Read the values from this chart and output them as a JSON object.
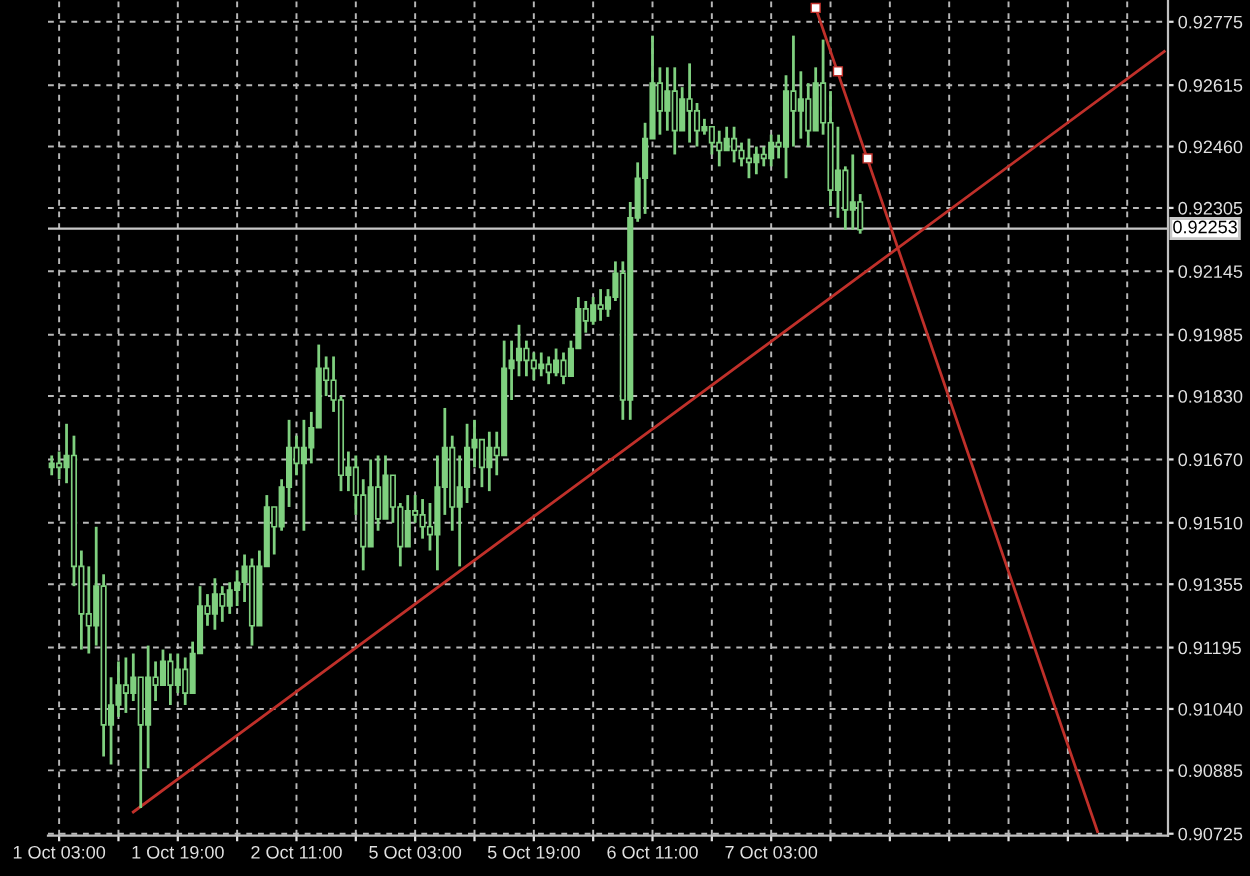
{
  "chart_data": {
    "type": "candlestick",
    "categories": [
      null,
      "1 Oct 03:00",
      null,
      null,
      null,
      null,
      null,
      null,
      null,
      null,
      null,
      null,
      null,
      null,
      null,
      null,
      null,
      "1 Oct 19:00",
      null,
      null,
      null,
      null,
      null,
      null,
      null,
      null,
      null,
      null,
      null,
      null,
      null,
      null,
      null,
      "2 Oct 11:00",
      null,
      null,
      null,
      null,
      null,
      null,
      null,
      null,
      null,
      null,
      null,
      null,
      null,
      null,
      null,
      "5 Oct 03:00",
      null,
      null,
      null,
      null,
      null,
      null,
      null,
      null,
      null,
      null,
      null,
      null,
      null,
      null,
      null,
      "5 Oct 19:00",
      null,
      null,
      null,
      null,
      null,
      null,
      null,
      null,
      null,
      null,
      null,
      null,
      null,
      null,
      null,
      "6 Oct 11:00",
      null,
      null,
      null,
      null,
      null,
      null,
      null,
      null,
      null,
      null,
      null,
      null,
      null,
      null,
      null,
      "7 Oct 03:00",
      null,
      null,
      null,
      null,
      null,
      null,
      null,
      null,
      null,
      null,
      null,
      null,
      null,
      null,
      null,
      null,
      null,
      null,
      null,
      null,
      null,
      null,
      null,
      null,
      null,
      null,
      null,
      null,
      null,
      null,
      null,
      null,
      null,
      null,
      null,
      null,
      null,
      null,
      null,
      null,
      null,
      null,
      null,
      null,
      null,
      null,
      null,
      null,
      null,
      null,
      null,
      null,
      null
    ],
    "ohlc": [
      [
        0.9165,
        0.9168,
        0.9163,
        0.9166
      ],
      [
        0.9166,
        0.9169,
        0.9162,
        0.9165
      ],
      [
        0.9165,
        0.9176,
        0.9161,
        0.9168
      ],
      [
        0.9168,
        0.9173,
        0.9135,
        0.914
      ],
      [
        0.914,
        0.9144,
        0.9119,
        0.9128
      ],
      [
        0.9128,
        0.914,
        0.9118,
        0.9125
      ],
      [
        0.9125,
        0.915,
        0.912,
        0.9135
      ],
      [
        0.9135,
        0.9138,
        0.9092,
        0.91
      ],
      [
        0.91,
        0.9112,
        0.909,
        0.9105
      ],
      [
        0.9105,
        0.9116,
        0.9102,
        0.911
      ],
      [
        0.911,
        0.9117,
        0.9103,
        0.9108
      ],
      [
        0.9108,
        0.9118,
        0.9106,
        0.9112
      ],
      [
        0.9112,
        0.9112,
        0.9079,
        0.91
      ],
      [
        0.91,
        0.912,
        0.9089,
        0.9112
      ],
      [
        0.9112,
        0.9116,
        0.9106,
        0.911
      ],
      [
        0.911,
        0.9119,
        0.911,
        0.9116
      ],
      [
        0.9116,
        0.9118,
        0.9105,
        0.911
      ],
      [
        0.911,
        0.9118,
        0.9108,
        0.9114
      ],
      [
        0.9114,
        0.9117,
        0.9105,
        0.9108
      ],
      [
        0.9108,
        0.9121,
        0.9108,
        0.9118
      ],
      [
        0.9118,
        0.9135,
        0.9118,
        0.913
      ],
      [
        0.913,
        0.9133,
        0.9125,
        0.9128
      ],
      [
        0.9128,
        0.9137,
        0.9124,
        0.9133
      ],
      [
        0.9133,
        0.9135,
        0.9126,
        0.913
      ],
      [
        0.913,
        0.9136,
        0.9128,
        0.9134
      ],
      [
        0.9134,
        0.9139,
        0.913,
        0.9136
      ],
      [
        0.9136,
        0.9143,
        0.9131,
        0.914
      ],
      [
        0.914,
        0.9142,
        0.912,
        0.9125
      ],
      [
        0.9125,
        0.9144,
        0.9125,
        0.914
      ],
      [
        0.914,
        0.9158,
        0.914,
        0.9155
      ],
      [
        0.9155,
        0.9155,
        0.9143,
        0.915
      ],
      [
        0.915,
        0.9162,
        0.9149,
        0.916
      ],
      [
        0.916,
        0.9177,
        0.9155,
        0.917
      ],
      [
        0.917,
        0.9173,
        0.9163,
        0.9166
      ],
      [
        0.9166,
        0.9177,
        0.9149,
        0.917
      ],
      [
        0.917,
        0.9179,
        0.9166,
        0.9175
      ],
      [
        0.9175,
        0.9196,
        0.9175,
        0.919
      ],
      [
        0.919,
        0.9193,
        0.9183,
        0.9187
      ],
      [
        0.9187,
        0.9193,
        0.9179,
        0.9182
      ],
      [
        0.9182,
        0.9183,
        0.9159,
        0.9163
      ],
      [
        0.9163,
        0.9169,
        0.9159,
        0.9165
      ],
      [
        0.9165,
        0.9168,
        0.9153,
        0.9158
      ],
      [
        0.9158,
        0.9162,
        0.9139,
        0.9145
      ],
      [
        0.9145,
        0.9167,
        0.9145,
        0.916
      ],
      [
        0.916,
        0.9168,
        0.9149,
        0.9152
      ],
      [
        0.9152,
        0.9168,
        0.9152,
        0.9163
      ],
      [
        0.9163,
        0.9163,
        0.9151,
        0.9155
      ],
      [
        0.9155,
        0.9156,
        0.914,
        0.9145
      ],
      [
        0.9145,
        0.9158,
        0.9145,
        0.9154
      ],
      [
        0.9154,
        0.9158,
        0.9151,
        0.9153
      ],
      [
        0.9153,
        0.9157,
        0.9147,
        0.915
      ],
      [
        0.915,
        0.9156,
        0.9144,
        0.9148
      ],
      [
        0.9148,
        0.9168,
        0.9139,
        0.916
      ],
      [
        0.916,
        0.918,
        0.9153,
        0.917
      ],
      [
        0.917,
        0.9173,
        0.9149,
        0.9155
      ],
      [
        0.9155,
        0.9168,
        0.914,
        0.916
      ],
      [
        0.916,
        0.9176,
        0.9156,
        0.917
      ],
      [
        0.917,
        0.9177,
        0.9165,
        0.9172
      ],
      [
        0.9172,
        0.9172,
        0.916,
        0.9165
      ],
      [
        0.9165,
        0.9174,
        0.9159,
        0.917
      ],
      [
        0.917,
        0.9174,
        0.9163,
        0.9168
      ],
      [
        0.9168,
        0.9197,
        0.9168,
        0.919
      ],
      [
        0.919,
        0.9197,
        0.9182,
        0.9192
      ],
      [
        0.9192,
        0.9201,
        0.9188,
        0.9195
      ],
      [
        0.9195,
        0.9197,
        0.9188,
        0.9192
      ],
      [
        0.9192,
        0.9194,
        0.9187,
        0.919
      ],
      [
        0.919,
        0.9194,
        0.9188,
        0.9191
      ],
      [
        0.9191,
        0.9193,
        0.9186,
        0.9189
      ],
      [
        0.9189,
        0.9195,
        0.9188,
        0.9192
      ],
      [
        0.9192,
        0.9194,
        0.9186,
        0.9188
      ],
      [
        0.9188,
        0.9197,
        0.9188,
        0.9195
      ],
      [
        0.9195,
        0.9208,
        0.9195,
        0.9205
      ],
      [
        0.9205,
        0.9207,
        0.9199,
        0.9202
      ],
      [
        0.9202,
        0.9208,
        0.9201,
        0.9206
      ],
      [
        0.9206,
        0.921,
        0.9202,
        0.9205
      ],
      [
        0.9205,
        0.921,
        0.9203,
        0.9208
      ],
      [
        0.9208,
        0.9217,
        0.9207,
        0.9214
      ],
      [
        0.9214,
        0.9217,
        0.9177,
        0.9182
      ],
      [
        0.9182,
        0.9232,
        0.9177,
        0.9228
      ],
      [
        0.9228,
        0.9242,
        0.9227,
        0.9238
      ],
      [
        0.9238,
        0.9252,
        0.9229,
        0.9248
      ],
      [
        0.9248,
        0.9274,
        0.9248,
        0.9262
      ],
      [
        0.9262,
        0.9266,
        0.9249,
        0.9255
      ],
      [
        0.9255,
        0.9266,
        0.925,
        0.926
      ],
      [
        0.926,
        0.9266,
        0.9244,
        0.925
      ],
      [
        0.925,
        0.9261,
        0.925,
        0.9258
      ],
      [
        0.9258,
        0.9267,
        0.9247,
        0.9255
      ],
      [
        0.9255,
        0.9257,
        0.9246,
        0.925
      ],
      [
        0.925,
        0.9253,
        0.9249,
        0.9251
      ],
      [
        0.9251,
        0.9251,
        0.9244,
        0.9247
      ],
      [
        0.9247,
        0.925,
        0.9241,
        0.9245
      ],
      [
        0.9245,
        0.9251,
        0.9245,
        0.9248
      ],
      [
        0.9248,
        0.9251,
        0.9242,
        0.9245
      ],
      [
        0.9245,
        0.9247,
        0.9241,
        0.9243
      ],
      [
        0.9243,
        0.9248,
        0.9238,
        0.9242
      ],
      [
        0.9242,
        0.9246,
        0.9239,
        0.9244
      ],
      [
        0.9244,
        0.9246,
        0.9241,
        0.9243
      ],
      [
        0.9243,
        0.9249,
        0.9241,
        0.9247
      ],
      [
        0.9247,
        0.9249,
        0.9243,
        0.9246
      ],
      [
        0.9246,
        0.9264,
        0.9238,
        0.926
      ],
      [
        0.926,
        0.9274,
        0.9246,
        0.9255
      ],
      [
        0.9255,
        0.9265,
        0.9248,
        0.9258
      ],
      [
        0.9258,
        0.9262,
        0.9246,
        0.925
      ],
      [
        0.925,
        0.9266,
        0.925,
        0.9262
      ],
      [
        0.9262,
        0.9273,
        0.9249,
        0.9252
      ],
      [
        0.9252,
        0.926,
        0.9231,
        0.9235
      ],
      [
        0.9235,
        0.9251,
        0.9228,
        0.924
      ],
      [
        0.924,
        0.9241,
        0.9225,
        0.923
      ],
      [
        0.923,
        0.9244,
        0.9225,
        0.9232
      ],
      [
        0.9232,
        0.9234,
        0.9224,
        0.9225
      ],
      null,
      null,
      null,
      null,
      null,
      null,
      null,
      null,
      null,
      null,
      null,
      null,
      null,
      null,
      null,
      null,
      null,
      null,
      null,
      null,
      null,
      null,
      null,
      null,
      null,
      null,
      null,
      null,
      null,
      null,
      null,
      null,
      null,
      null,
      null,
      null,
      null,
      null,
      null,
      null,
      null
    ],
    "color": "#7fd07f",
    "series": [
      {
        "type": "line",
        "color": "#c0302a",
        "values": [
          null,
          null,
          null,
          null,
          null,
          null,
          null,
          null,
          null,
          null,
          null,
          0.9078,
          null,
          null,
          null,
          null,
          null,
          null,
          null,
          null,
          null,
          null,
          null,
          null,
          null,
          null,
          null,
          null,
          null,
          null,
          null,
          null,
          null,
          null,
          null,
          null,
          null,
          null,
          null,
          null,
          null,
          null,
          null,
          null,
          null,
          null,
          null,
          null,
          null,
          null,
          null,
          null,
          null,
          null,
          null,
          null,
          null,
          null,
          null,
          null,
          null,
          null,
          null,
          null,
          null,
          null,
          null,
          null,
          null,
          null,
          null,
          null,
          null,
          null,
          null,
          null,
          null,
          null,
          null,
          null,
          null,
          null,
          null,
          null,
          null,
          null,
          null,
          null,
          null,
          null,
          null,
          null,
          null,
          null,
          null,
          null,
          null,
          null,
          null,
          null,
          null,
          null,
          null,
          null,
          null,
          null,
          null,
          null,
          null,
          null,
          null,
          null,
          null,
          null,
          null,
          null,
          null,
          null,
          null,
          null,
          null,
          null,
          null,
          null,
          null,
          null,
          null,
          null,
          null,
          null,
          null,
          null,
          null,
          null,
          null,
          null,
          null,
          null,
          null,
          null,
          null,
          null,
          null,
          null,
          null,
          null,
          null,
          null,
          null,
          null,
          0.927
        ]
      },
      {
        "type": "line",
        "color": "#c0302a",
        "values": [
          null,
          null,
          null,
          null,
          null,
          null,
          null,
          null,
          null,
          null,
          null,
          null,
          null,
          null,
          null,
          null,
          null,
          null,
          null,
          null,
          null,
          null,
          null,
          null,
          null,
          null,
          null,
          null,
          null,
          null,
          null,
          null,
          null,
          null,
          null,
          null,
          null,
          null,
          null,
          null,
          null,
          null,
          null,
          null,
          null,
          null,
          null,
          null,
          null,
          null,
          null,
          null,
          null,
          null,
          null,
          null,
          null,
          null,
          null,
          null,
          null,
          null,
          null,
          null,
          null,
          null,
          null,
          null,
          null,
          null,
          null,
          null,
          null,
          null,
          null,
          null,
          null,
          null,
          null,
          null,
          null,
          null,
          null,
          null,
          null,
          null,
          null,
          null,
          null,
          null,
          null,
          null,
          null,
          null,
          null,
          null,
          null,
          null,
          null,
          null,
          null,
          null,
          null,
          0.9281,
          null,
          null,
          null,
          null,
          null,
          null,
          null,
          null,
          null,
          null,
          null,
          null,
          null,
          null,
          null,
          null,
          null,
          null,
          null,
          null,
          null,
          null,
          null,
          null,
          null,
          null,
          null,
          null,
          null,
          null,
          null,
          null,
          null,
          null,
          null,
          null,
          null,
          0.9073,
          null,
          null,
          null,
          null,
          null,
          null,
          null,
          null,
          null
        ]
      },
      {
        "type": "scatter",
        "color": "#ffffff",
        "marker": "square",
        "values": [
          null,
          null,
          null,
          null,
          null,
          null,
          null,
          null,
          null,
          null,
          null,
          null,
          null,
          null,
          null,
          null,
          null,
          null,
          null,
          null,
          null,
          null,
          null,
          null,
          null,
          null,
          null,
          null,
          null,
          null,
          null,
          null,
          null,
          null,
          null,
          null,
          null,
          null,
          null,
          null,
          null,
          null,
          null,
          null,
          null,
          null,
          null,
          null,
          null,
          null,
          null,
          null,
          null,
          null,
          null,
          null,
          null,
          null,
          null,
          null,
          null,
          null,
          null,
          null,
          null,
          null,
          null,
          null,
          null,
          null,
          null,
          null,
          null,
          null,
          null,
          null,
          null,
          null,
          null,
          null,
          null,
          null,
          null,
          null,
          null,
          null,
          null,
          null,
          null,
          null,
          null,
          null,
          null,
          null,
          null,
          null,
          null,
          null,
          null,
          null,
          null,
          null,
          null,
          0.9281,
          null,
          null,
          0.9265,
          null,
          null,
          null,
          0.9243,
          null,
          null,
          null,
          null,
          null,
          null,
          null,
          null,
          null,
          null,
          null,
          null,
          null,
          null,
          null,
          null,
          null,
          null,
          null,
          null,
          null,
          null,
          null,
          null,
          null,
          null,
          null,
          null,
          null,
          null,
          null,
          null,
          null,
          null,
          null,
          null,
          null,
          null,
          null,
          null
        ]
      }
    ],
    "ylim": [
      0.9072,
      0.9283
    ],
    "yticks": [
      0.92775,
      0.92615,
      {
        "value": 0.9246,
        "label": "0.92460"
      },
      0.92305,
      0.92145,
      0.91985,
      {
        "value": 0.9183,
        "label": "0.91830"
      },
      {
        "value": 0.9167,
        "label": "0.91670"
      },
      {
        "value": 0.9151,
        "label": "0.91510"
      },
      0.91355,
      0.91195,
      {
        "value": 0.9104,
        "label": "0.91040"
      },
      0.90885,
      0.90725
    ],
    "ref_lines": [
      {
        "axis": "y",
        "value": 0.92253,
        "label": "0.92253",
        "color": "#c8c8c8"
      }
    ],
    "grid": true,
    "legend": false
  }
}
